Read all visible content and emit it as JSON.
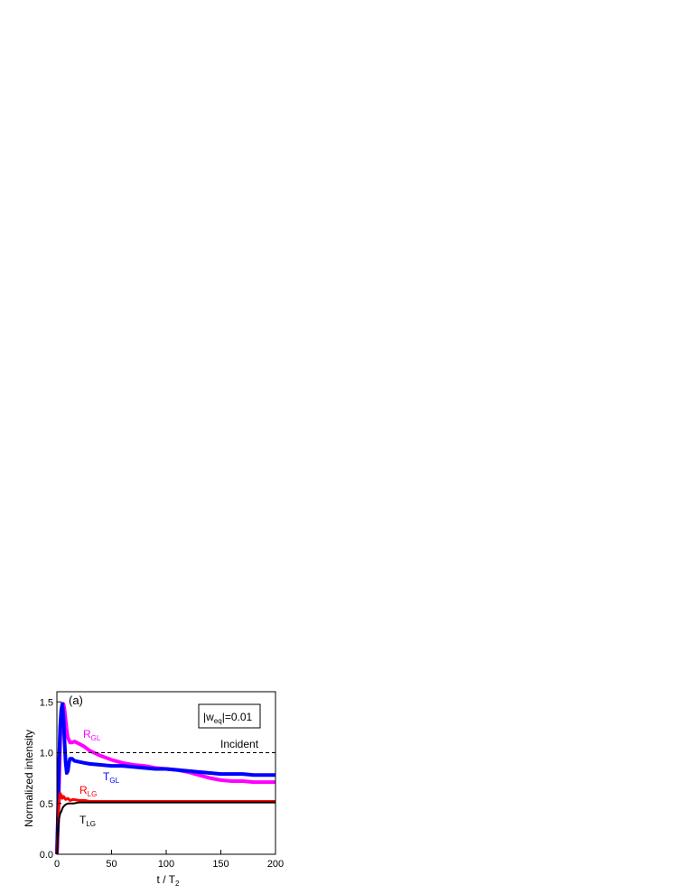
{
  "chart_data": {
    "type": "line",
    "panel_label": "(a)",
    "xlabel": "t / T",
    "xlabel_sub": "2",
    "ylabel": "Normalized intensity",
    "xlim": [
      0,
      200
    ],
    "ylim": [
      0,
      1.6
    ],
    "x_ticks": [
      0,
      50,
      100,
      150,
      200
    ],
    "x_tick_labels": [
      "0",
      "50",
      "100",
      "150",
      "200"
    ],
    "y_ticks": [
      0,
      0.5,
      1.0,
      1.5
    ],
    "y_tick_labels": [
      "0.0",
      "0.5",
      "1.0",
      "1.5"
    ],
    "annotation_box": {
      "pre": "|w",
      "sub": "eq",
      "post": "|=0.01"
    },
    "incident": {
      "label": "Incident",
      "value": 1.0,
      "color": "#000000"
    },
    "series": [
      {
        "label_main": "R",
        "label_sub": "GL",
        "color": "#ff00ff",
        "x": [
          0,
          1,
          2,
          3,
          4,
          5,
          6,
          7,
          8,
          9,
          10,
          12,
          14,
          16,
          20,
          25,
          30,
          40,
          50,
          60,
          70,
          80,
          90,
          100,
          110,
          120,
          130,
          140,
          150,
          160,
          170,
          180,
          190,
          200
        ],
        "y": [
          0.0,
          0.3,
          0.7,
          1.1,
          1.35,
          1.45,
          1.48,
          1.42,
          1.32,
          1.22,
          1.15,
          1.1,
          1.1,
          1.11,
          1.09,
          1.06,
          1.02,
          0.97,
          0.93,
          0.9,
          0.88,
          0.87,
          0.85,
          0.84,
          0.83,
          0.81,
          0.78,
          0.75,
          0.73,
          0.72,
          0.72,
          0.71,
          0.71,
          0.71
        ]
      },
      {
        "label_main": "T",
        "label_sub": "GL",
        "color": "#0000ff",
        "x": [
          0,
          1,
          2,
          3,
          4,
          5,
          6,
          7,
          8,
          9,
          10,
          11,
          12,
          14,
          16,
          20,
          25,
          30,
          40,
          50,
          60,
          70,
          80,
          90,
          100,
          110,
          120,
          130,
          140,
          150,
          160,
          170,
          180,
          190,
          200
        ],
        "y": [
          0.0,
          0.4,
          0.9,
          1.25,
          1.42,
          1.48,
          1.35,
          1.1,
          0.9,
          0.8,
          0.82,
          0.9,
          0.94,
          0.94,
          0.92,
          0.91,
          0.9,
          0.89,
          0.88,
          0.87,
          0.87,
          0.86,
          0.85,
          0.84,
          0.84,
          0.83,
          0.82,
          0.81,
          0.8,
          0.79,
          0.79,
          0.79,
          0.78,
          0.78,
          0.78
        ]
      },
      {
        "label_main": "R",
        "label_sub": "LG",
        "color": "#ff0000",
        "x": [
          0,
          1,
          2,
          3,
          4,
          5,
          6,
          8,
          10,
          12,
          15,
          20,
          25,
          30,
          40,
          50,
          60,
          80,
          100,
          120,
          140,
          160,
          180,
          200
        ],
        "y": [
          0.0,
          0.3,
          0.5,
          0.6,
          0.58,
          0.55,
          0.57,
          0.54,
          0.55,
          0.53,
          0.54,
          0.53,
          0.53,
          0.52,
          0.52,
          0.52,
          0.52,
          0.52,
          0.52,
          0.52,
          0.52,
          0.52,
          0.52,
          0.52
        ]
      },
      {
        "label_main": "T",
        "label_sub": "LG",
        "color": "#000000",
        "x": [
          0,
          1,
          2,
          3,
          4,
          5,
          6,
          7,
          8,
          10,
          12,
          15,
          20,
          25,
          30,
          40,
          50,
          60,
          80,
          100,
          120,
          140,
          160,
          180,
          200
        ],
        "y": [
          0.0,
          0.2,
          0.35,
          0.4,
          0.42,
          0.45,
          0.47,
          0.48,
          0.49,
          0.5,
          0.5,
          0.5,
          0.51,
          0.51,
          0.51,
          0.51,
          0.51,
          0.51,
          0.51,
          0.51,
          0.51,
          0.51,
          0.51,
          0.51,
          0.51
        ]
      }
    ]
  }
}
